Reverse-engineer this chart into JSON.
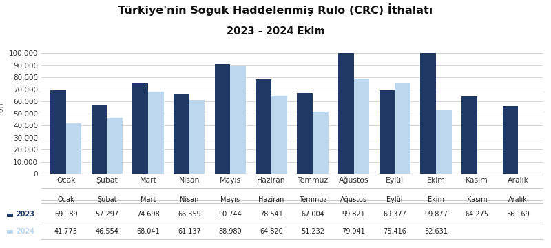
{
  "title_line1": "Türkiye'nin Soğuk Haddelenmiş Rulo (CRC) İthalatı",
  "title_line2": "2023 - 2024 Ekim",
  "months": [
    "Ocak",
    "Şubat",
    "Mart",
    "Nisan",
    "Mayıs",
    "Haziran",
    "Temmuz",
    "Ağustos",
    "Eylül",
    "Ekim",
    "Kasım",
    "Aralık"
  ],
  "values_2023": [
    69189,
    57297,
    74698,
    66359,
    90744,
    78541,
    67004,
    99821,
    69377,
    99877,
    64275,
    56169
  ],
  "values_2024": [
    41773,
    46554,
    68041,
    61137,
    88980,
    64820,
    51232,
    79041,
    75416,
    52631,
    null,
    null
  ],
  "labels_2023": [
    "69.189",
    "57.297",
    "74.698",
    "66.359",
    "90.744",
    "78.541",
    "67.004",
    "99.821",
    "69.377",
    "99.877",
    "64.275",
    "56.169"
  ],
  "labels_2024": [
    "41.773",
    "46.554",
    "68.041",
    "61.137",
    "88.980",
    "64.820",
    "51.232",
    "79.041",
    "75.416",
    "52.631",
    "",
    ""
  ],
  "color_2023": "#1F3864",
  "color_2024": "#BDD7EE",
  "ylabel": "Ton",
  "ylim": [
    0,
    107000
  ],
  "yticks": [
    0,
    10000,
    20000,
    30000,
    40000,
    50000,
    60000,
    70000,
    80000,
    90000,
    100000
  ],
  "ytick_labels": [
    "0",
    "10.000",
    "20.000",
    "30.000",
    "40.000",
    "50.000",
    "60.000",
    "70.000",
    "80.000",
    "90.000",
    "100.000"
  ],
  "background_color": "#FFFFFF",
  "grid_color": "#D0D0D0",
  "title_fontsize": 11.5,
  "subtitle_fontsize": 10.5
}
